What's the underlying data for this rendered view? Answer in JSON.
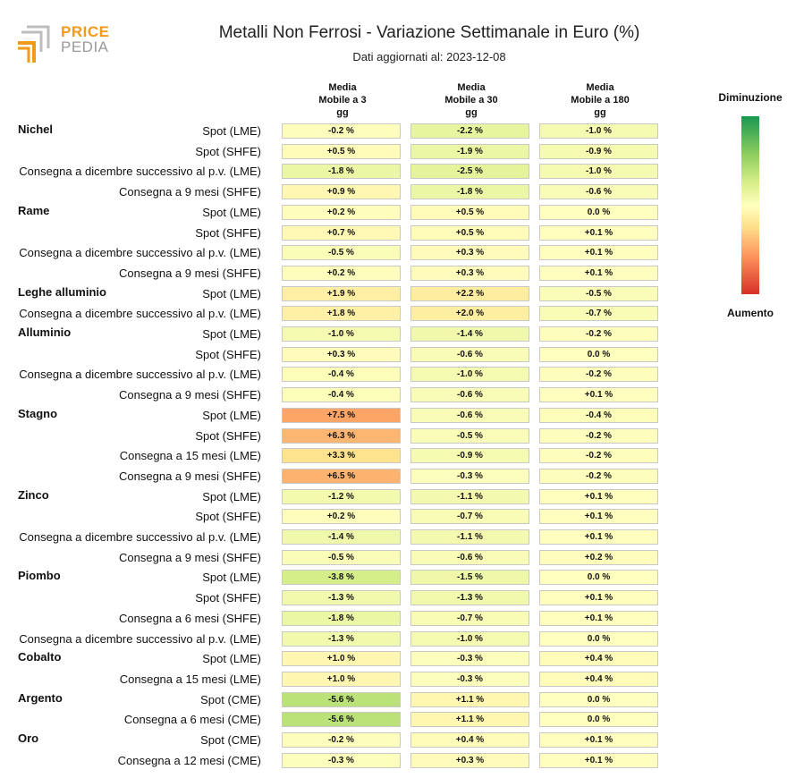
{
  "logo": {
    "word_top": "PRICE",
    "word_bottom": "PEDIA"
  },
  "header": {
    "title": "Metalli Non Ferrosi - Variazione Settimanale in Euro (%)",
    "subtitle": "Dati aggiornati al: 2023-12-08"
  },
  "legend": {
    "top_label": "Diminuzione",
    "bottom_label": "Aumento"
  },
  "colors": {
    "accent": "#f39a1d",
    "min": "#1a9850",
    "mid": "#ffffbf",
    "max": "#d73027"
  },
  "chart_data": {
    "type": "table",
    "title": "Metalli Non Ferrosi - Variazione Settimanale in Euro (%)",
    "columns": [
      "Media\nMobile a 3\ngg",
      "Media\nMobile a 30\ngg",
      "Media\nMobile a 180\ngg"
    ],
    "rows": [
      {
        "group": "Nichel",
        "label": "Spot (LME)",
        "values": [
          -0.2,
          -2.2,
          -1.0
        ]
      },
      {
        "group": "",
        "label": "Spot (SHFE)",
        "values": [
          0.5,
          -1.9,
          -0.9
        ]
      },
      {
        "group": "",
        "label": "Consegna a dicembre successivo al p.v. (LME)",
        "values": [
          -1.8,
          -2.5,
          -1.0
        ]
      },
      {
        "group": "",
        "label": "Consegna a 9 mesi (SHFE)",
        "values": [
          0.9,
          -1.8,
          -0.6
        ]
      },
      {
        "group": "Rame",
        "label": "Spot (LME)",
        "values": [
          0.2,
          0.5,
          0.0
        ]
      },
      {
        "group": "",
        "label": "Spot (SHFE)",
        "values": [
          0.7,
          0.5,
          0.1
        ]
      },
      {
        "group": "",
        "label": "Consegna a dicembre successivo al p.v. (LME)",
        "values": [
          -0.5,
          0.3,
          0.1
        ]
      },
      {
        "group": "",
        "label": "Consegna a 9 mesi (SHFE)",
        "values": [
          0.2,
          0.3,
          0.1
        ]
      },
      {
        "group": "Leghe alluminio",
        "label": "Spot (LME)",
        "values": [
          1.9,
          2.2,
          -0.5
        ]
      },
      {
        "group": "",
        "label": "Consegna a dicembre successivo al p.v. (LME)",
        "values": [
          1.8,
          2.0,
          -0.7
        ]
      },
      {
        "group": "Alluminio",
        "label": "Spot (LME)",
        "values": [
          -1.0,
          -1.4,
          -0.2
        ]
      },
      {
        "group": "",
        "label": "Spot (SHFE)",
        "values": [
          0.3,
          -0.6,
          0.0
        ]
      },
      {
        "group": "",
        "label": "Consegna a dicembre successivo al p.v. (LME)",
        "values": [
          -0.4,
          -1.0,
          -0.2
        ]
      },
      {
        "group": "",
        "label": "Consegna a 9 mesi (SHFE)",
        "values": [
          -0.4,
          -0.6,
          0.1
        ]
      },
      {
        "group": "Stagno",
        "label": "Spot (LME)",
        "values": [
          7.5,
          -0.6,
          -0.4
        ]
      },
      {
        "group": "",
        "label": "Spot (SHFE)",
        "values": [
          6.3,
          -0.5,
          -0.2
        ]
      },
      {
        "group": "",
        "label": "Consegna a 15 mesi (LME)",
        "values": [
          3.3,
          -0.9,
          -0.2
        ]
      },
      {
        "group": "",
        "label": "Consegna a 9 mesi (SHFE)",
        "values": [
          6.5,
          -0.3,
          -0.2
        ]
      },
      {
        "group": "Zinco",
        "label": "Spot (LME)",
        "values": [
          -1.2,
          -1.1,
          0.1
        ]
      },
      {
        "group": "",
        "label": "Spot (SHFE)",
        "values": [
          0.2,
          -0.7,
          0.1
        ]
      },
      {
        "group": "",
        "label": "Consegna a dicembre successivo al p.v. (LME)",
        "values": [
          -1.4,
          -1.1,
          0.1
        ]
      },
      {
        "group": "",
        "label": "Consegna a 9 mesi (SHFE)",
        "values": [
          -0.5,
          -0.6,
          0.2
        ]
      },
      {
        "group": "Piombo",
        "label": "Spot (LME)",
        "values": [
          -3.8,
          -1.5,
          0.0
        ]
      },
      {
        "group": "",
        "label": "Spot (SHFE)",
        "values": [
          -1.3,
          -1.3,
          0.1
        ]
      },
      {
        "group": "",
        "label": "Consegna a 6 mesi (SHFE)",
        "values": [
          -1.8,
          -0.7,
          0.1
        ]
      },
      {
        "group": "",
        "label": "Consegna a dicembre successivo al p.v. (LME)",
        "values": [
          -1.3,
          -1.0,
          0.0
        ]
      },
      {
        "group": "Cobalto",
        "label": "Spot (LME)",
        "values": [
          1.0,
          -0.3,
          0.4
        ]
      },
      {
        "group": "",
        "label": "Consegna a 15 mesi (LME)",
        "values": [
          1.0,
          -0.3,
          0.4
        ]
      },
      {
        "group": "Argento",
        "label": "Spot (CME)",
        "values": [
          -5.6,
          1.1,
          0.0
        ]
      },
      {
        "group": "",
        "label": "Consegna a 6 mesi (CME)",
        "values": [
          -5.6,
          1.1,
          0.0
        ]
      },
      {
        "group": "Oro",
        "label": "Spot (CME)",
        "values": [
          -0.2,
          0.4,
          0.1
        ]
      },
      {
        "group": "",
        "label": "Consegna a 12 mesi (CME)",
        "values": [
          -0.3,
          0.3,
          0.1
        ]
      }
    ],
    "color_scale": {
      "min": -15,
      "max": 15,
      "direction": "negative-green-positive-red"
    }
  }
}
